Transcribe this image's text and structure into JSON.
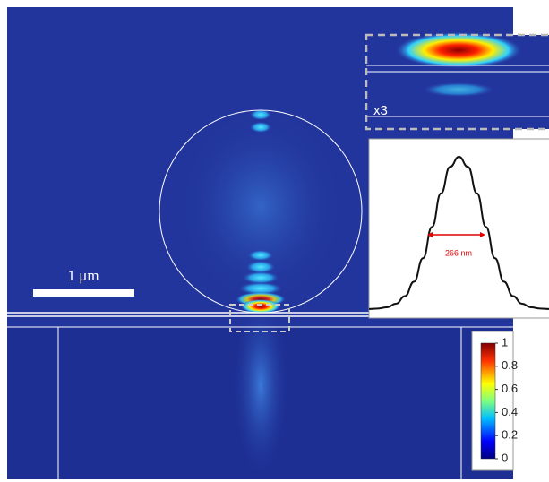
{
  "scale_bar": {
    "label": "1 μm"
  },
  "inset": {
    "label": "x3"
  },
  "profile": {
    "type": "line",
    "values": [
      0.001,
      0.004,
      0.012,
      0.035,
      0.085,
      0.18,
      0.334,
      0.539,
      0.76,
      0.934,
      1,
      0.934,
      0.76,
      0.539,
      0.334,
      0.18,
      0.085,
      0.035,
      0.012,
      0.004,
      0.001
    ],
    "ylim": [
      0,
      1
    ],
    "annotation": "266 nm"
  },
  "colorbar": {
    "lim": [
      0,
      1
    ],
    "ticks": [
      0,
      0.2,
      0.4,
      0.6,
      0.8,
      1
    ]
  }
}
